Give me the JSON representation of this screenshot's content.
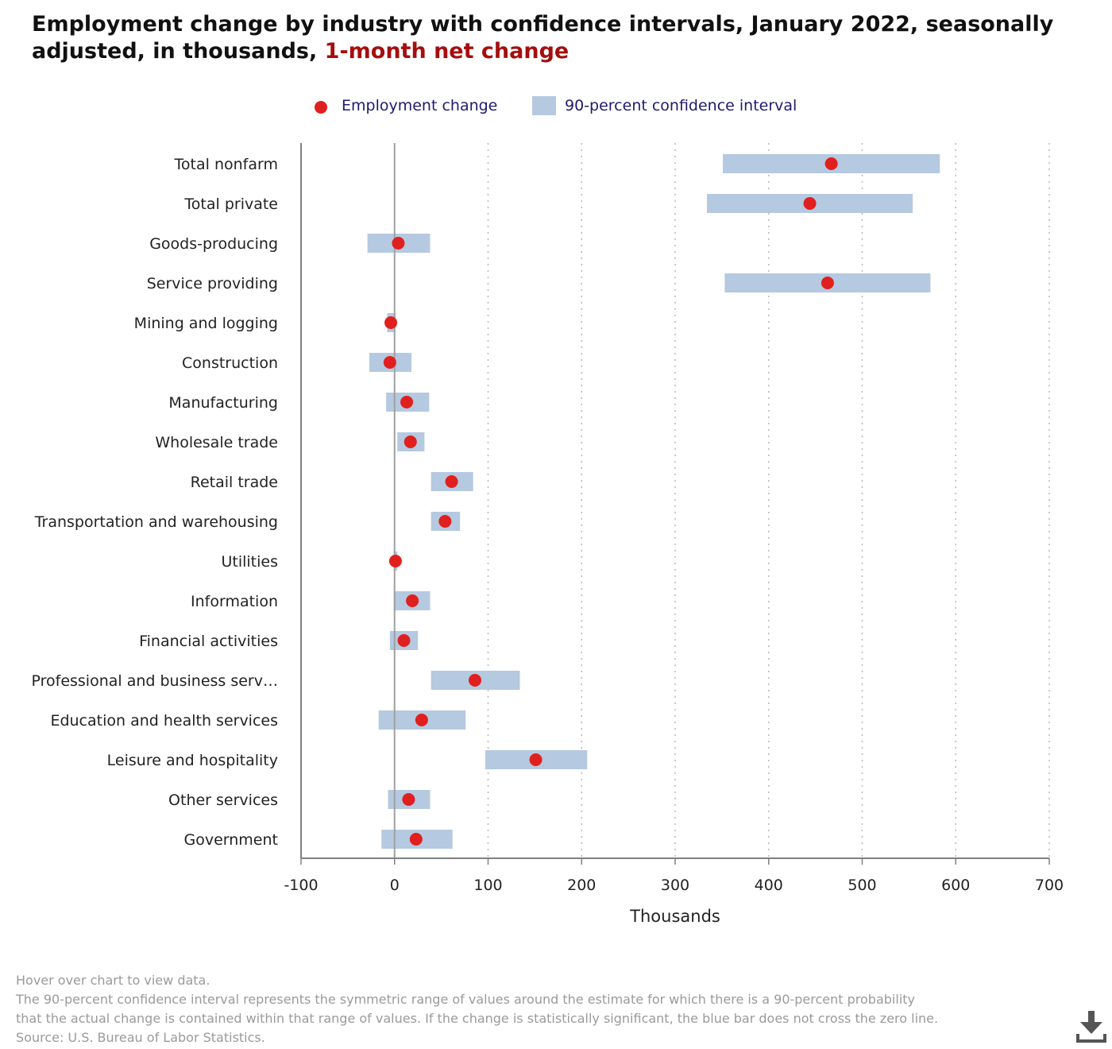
{
  "title": {
    "main": "Employment change by industry with confidence intervals, January 2022, seasonally adjusted, in thousands,",
    "accent": "1-month net change"
  },
  "legend": {
    "point_label": "Employment change",
    "interval_label": "90-percent confidence interval"
  },
  "colors": {
    "point": "#e0201e",
    "interval": "#b5c9e0",
    "accent_title": "#a50e0e",
    "legend_text": "#1f1a6e"
  },
  "chart_data": {
    "type": "scatter",
    "orientation": "horizontal",
    "xlabel": "Thousands",
    "xlim": [
      -100,
      700
    ],
    "xticks": [
      -100,
      0,
      100,
      200,
      300,
      400,
      500,
      600,
      700
    ],
    "grid": "vertical dotted",
    "legend_position": "top-center",
    "categories": [
      "Total nonfarm",
      "Total private",
      "Goods-producing",
      "Service providing",
      "Mining and logging",
      "Construction",
      "Manufacturing",
      "Wholesale trade",
      "Retail trade",
      "Transportation and warehousing",
      "Utilities",
      "Information",
      "Financial activities",
      "Professional and business serv…",
      "Education and health services",
      "Leisure and hospitality",
      "Other services",
      "Government"
    ],
    "series": [
      {
        "name": "Employment change",
        "values": [
          467,
          444,
          4,
          463,
          -4,
          -5,
          13,
          17,
          61,
          54,
          1,
          19,
          10,
          86,
          29,
          151,
          15,
          23
        ]
      },
      {
        "name": "90-percent confidence interval",
        "lower": [
          351,
          334,
          -29,
          353,
          -8,
          -27,
          -9,
          3,
          39,
          39,
          -1,
          -1,
          -5,
          39,
          -17,
          97,
          -7,
          -14
        ],
        "upper": [
          583,
          554,
          38,
          573,
          1,
          18,
          37,
          32,
          84,
          70,
          3,
          38,
          25,
          134,
          76,
          206,
          38,
          62
        ]
      }
    ]
  },
  "footer": {
    "line1": "Hover over chart to view data.",
    "line2": "The 90-percent confidence interval represents the symmetric range of values around the estimate for which there is a 90-percent probability",
    "line3": "that the actual change is contained within that range of values. If the change is statistically significant, the blue bar does not cross the zero line.",
    "line4": "Source: U.S. Bureau of Labor Statistics."
  },
  "download_icon": "download-icon"
}
